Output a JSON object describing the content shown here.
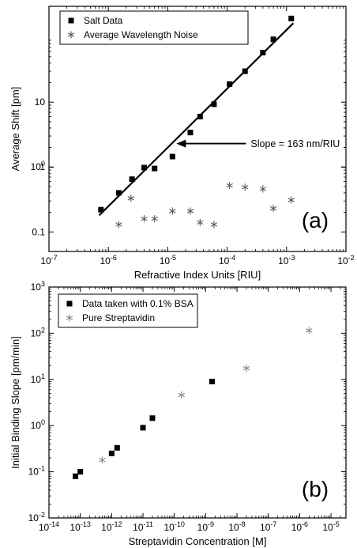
{
  "chart_data": [
    {
      "type": "scatter",
      "xscale": "log",
      "yscale": "log",
      "xlim": [
        1e-07,
        0.01
      ],
      "ylim": [
        0.05,
        300
      ],
      "xlabel": "Refractive Index Units [RIU]",
      "ylabel": "Average Shift [pm]",
      "xtick_labels": [
        "10-7",
        "10-6",
        "10-5",
        "10-4",
        "10-3",
        "10-2"
      ],
      "ytick_labels": [
        "0.1",
        "1",
        "10",
        "100"
      ],
      "legend_position": "top-left",
      "panel_label": "(a)",
      "series": [
        {
          "name": "Salt Data",
          "marker": "square",
          "color": "#000000",
          "x": [
            7.5e-07,
            1.5e-06,
            2.5e-06,
            4e-06,
            6e-06,
            1.2e-05,
            2.4e-05,
            3.5e-05,
            6e-05,
            0.00011,
            0.0002,
            0.0004,
            0.0006,
            0.0012
          ],
          "y": [
            0.22,
            0.4,
            0.65,
            0.98,
            0.95,
            1.45,
            3.4,
            6.0,
            9.3,
            19.0,
            30.0,
            58.0,
            93.0,
            195.0
          ]
        },
        {
          "name": "Average Wavelength Noise",
          "marker": "asterisk",
          "color": "#555555",
          "x": [
            1.5e-06,
            2.4e-06,
            4e-06,
            6e-06,
            1.2e-05,
            2.4e-05,
            3.5e-05,
            6e-05,
            0.00011,
            0.0002,
            0.0004,
            0.0006,
            0.0012
          ],
          "y": [
            0.13,
            0.33,
            0.16,
            0.16,
            0.21,
            0.21,
            0.14,
            0.13,
            0.52,
            0.49,
            0.46,
            0.23,
            0.31
          ]
        }
      ],
      "fit_line": {
        "x": [
          7e-07,
          0.0013
        ],
        "y": [
          0.18,
          165
        ]
      },
      "annotation": {
        "text": "Slope = 163 nm/RIU",
        "target_x": 1.4e-05,
        "target_y": 2.3
      }
    },
    {
      "type": "scatter",
      "xscale": "log",
      "yscale": "log",
      "xlim": [
        1e-14,
        3e-05
      ],
      "ylim": [
        0.01,
        1000
      ],
      "xlabel": "Streptavidin Concentration [M]",
      "ylabel": "Initial Binding Slope [pm/min]",
      "xtick_labels": [
        "10-14",
        "10-13",
        "10-12",
        "10-11",
        "10-10",
        "10-9",
        "10-8",
        "10-7",
        "10-6",
        "10-5"
      ],
      "ytick_labels": [
        "10-2",
        "10-1",
        "100",
        "101",
        "102",
        "103"
      ],
      "legend_position": "top-left",
      "panel_label": "(b)",
      "series": [
        {
          "name": "Data taken with 0.1% BSA",
          "marker": "square",
          "color": "#000000",
          "x": [
            7e-14,
            1e-13,
            1e-12,
            1.5e-12,
            1e-11,
            2e-11,
            1.6e-09
          ],
          "y": [
            0.08,
            0.1,
            0.25,
            0.33,
            0.9,
            1.45,
            9.0
          ]
        },
        {
          "name": "Pure Streptavidin",
          "marker": "asterisk",
          "color": "#888888",
          "x": [
            5e-13,
            1.7e-10,
            2e-08,
            2e-06
          ],
          "y": [
            0.18,
            4.6,
            17.5,
            115.0
          ]
        }
      ]
    }
  ]
}
